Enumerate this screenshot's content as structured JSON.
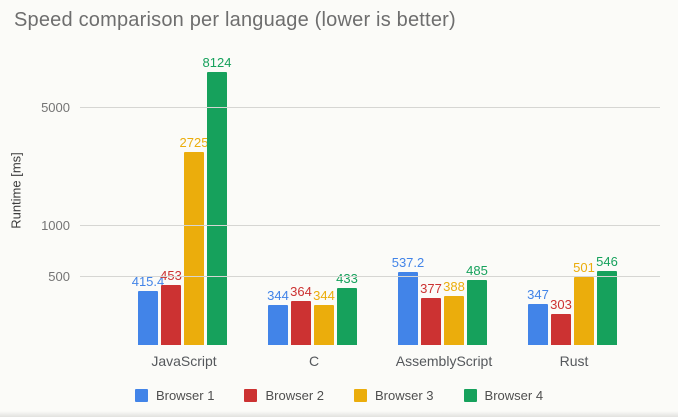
{
  "chart_data": {
    "type": "bar",
    "title": "Speed comparison per language (lower is better)",
    "xlabel": "",
    "ylabel": "Runtime [ms]",
    "y_axis": {
      "scale": "log",
      "min": 200,
      "max": 10200,
      "ticks": [
        500,
        1000,
        5000
      ]
    },
    "grid": true,
    "legend_position": "bottom",
    "categories": [
      "JavaScript",
      "C",
      "AssemblyScript",
      "Rust"
    ],
    "series": [
      {
        "name": "Browser 1",
        "color": "#4284e8",
        "values": [
          415.4,
          344,
          537.2,
          347
        ],
        "labels": [
          "415.4",
          "344",
          "537.2",
          "347"
        ]
      },
      {
        "name": "Browser 2",
        "color": "#cc3232",
        "values": [
          453,
          364,
          377,
          303
        ],
        "labels": [
          "453",
          "364",
          "377",
          "303"
        ]
      },
      {
        "name": "Browser 3",
        "color": "#ebad0c",
        "values": [
          2725,
          344,
          388,
          501
        ],
        "labels": [
          "2725",
          "344",
          "388",
          "501"
        ]
      },
      {
        "name": "Browser 4",
        "color": "#16a15c",
        "values": [
          8124,
          433,
          485,
          546
        ],
        "labels": [
          "8124",
          "433",
          "485",
          "546"
        ]
      }
    ]
  }
}
